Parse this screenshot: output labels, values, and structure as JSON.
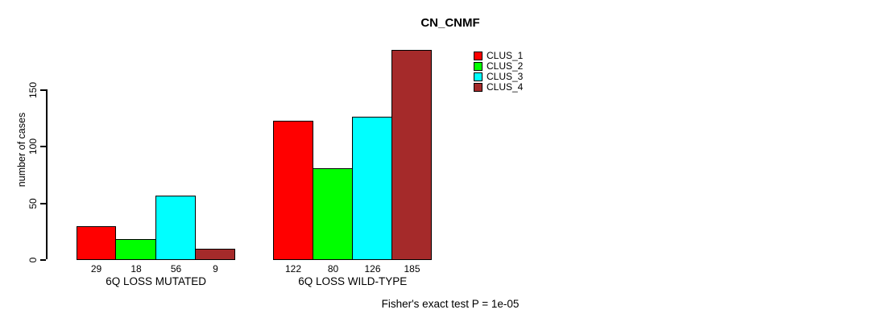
{
  "chart_data": {
    "type": "bar",
    "title": "CN_CNMF",
    "ylabel": "number of cases",
    "xlabel": "",
    "categories": [
      "6Q LOSS MUTATED",
      "6Q LOSS WILD-TYPE"
    ],
    "series": [
      {
        "name": "CLUS_1",
        "color": "#ff0000",
        "values": [
          29,
          122
        ]
      },
      {
        "name": "CLUS_2",
        "color": "#00ff00",
        "values": [
          18,
          80
        ]
      },
      {
        "name": "CLUS_3",
        "color": "#00ffff",
        "values": [
          56,
          126
        ]
      },
      {
        "name": "CLUS_4",
        "color": "#a52a2a",
        "values": [
          9,
          185
        ]
      }
    ],
    "yticks": [
      0,
      50,
      100,
      150
    ],
    "ylim": [
      0,
      190
    ],
    "grid": false,
    "show_value_labels": true,
    "legend_position": "top-right",
    "annotation": "Fisher's exact test P = 1e-05"
  }
}
